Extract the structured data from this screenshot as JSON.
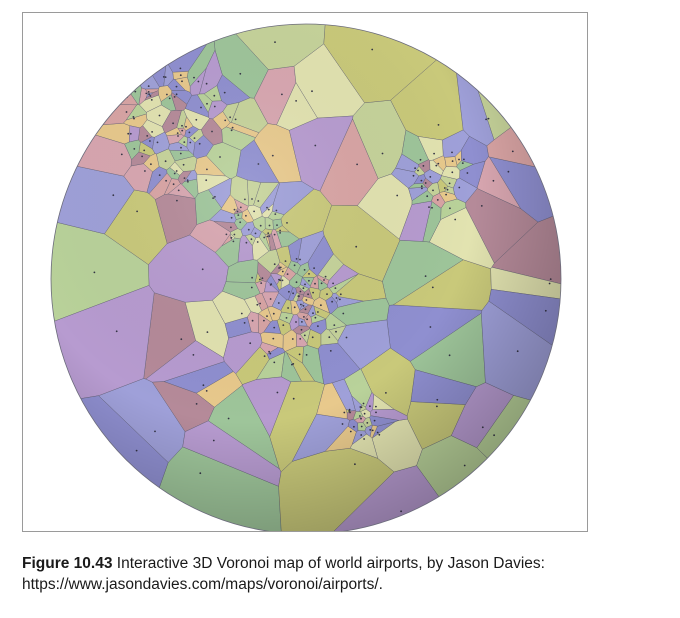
{
  "figure": {
    "label": "Figure 10.43",
    "caption_text": " Interactive 3D Voronoi map of world airports, by Jason Davies:",
    "url": "https://www.jasondavies.com/maps/voronoi/airports/."
  },
  "graphic": {
    "palette": [
      "#9fa0d9",
      "#c9c97a",
      "#b9d29a",
      "#d8a6b0",
      "#e8c98c",
      "#b79bd0",
      "#9ec59a",
      "#c6d39a",
      "#8f8fd0",
      "#d9a4a4",
      "#e2e3b0",
      "#b58a99"
    ],
    "edge_color": "#55556a",
    "shading_color": "#27284a"
  }
}
